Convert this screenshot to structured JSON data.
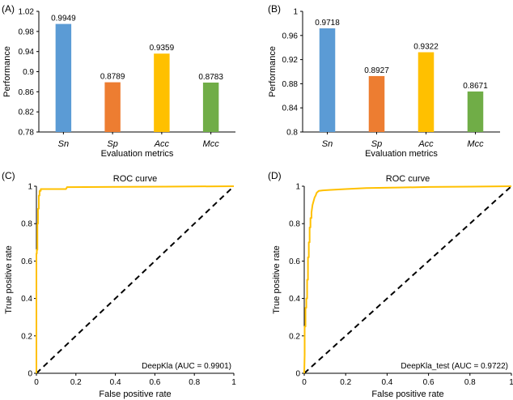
{
  "chart_data": [
    {
      "panel": "(A)",
      "type": "bar",
      "categories": [
        "Sn",
        "Sp",
        "Acc",
        "Mcc"
      ],
      "values": [
        0.9949,
        0.8789,
        0.9359,
        0.8783
      ],
      "value_labels": [
        "0.9949",
        "0.8789",
        "0.9359",
        "0.8783"
      ],
      "colors": [
        "#5b9bd5",
        "#ed7d31",
        "#ffc000",
        "#70ad47"
      ],
      "ylim": [
        0.78,
        1.02
      ],
      "yticks": [
        "0.78",
        "0.82",
        "0.86",
        "0.9",
        "0.94",
        "0.98",
        "1.02"
      ],
      "ylabel": "Performance",
      "xlabel": "Evaluation metrics"
    },
    {
      "panel": "(B)",
      "type": "bar",
      "categories": [
        "Sn",
        "Sp",
        "Acc",
        "Mcc"
      ],
      "values": [
        0.9718,
        0.8927,
        0.9322,
        0.8671
      ],
      "value_labels": [
        "0.9718",
        "0.8927",
        "0.9322",
        "0.8671"
      ],
      "colors": [
        "#5b9bd5",
        "#ed7d31",
        "#ffc000",
        "#70ad47"
      ],
      "ylim": [
        0.8,
        1.0
      ],
      "yticks": [
        "0.8",
        "0.84",
        "0.88",
        "0.92",
        "0.96",
        "1"
      ],
      "ylabel": "Performance",
      "xlabel": "Evaluation metrics"
    },
    {
      "panel": "(C)",
      "type": "line",
      "title": "ROC curve",
      "xlabel": "False positive rate",
      "ylabel": "True positive rate",
      "xlim": [
        0,
        1
      ],
      "ylim": [
        0,
        1
      ],
      "xticks": [
        "0",
        "0.2",
        "0.4",
        "0.6",
        "0.8",
        "1"
      ],
      "yticks": [
        "0",
        "0.2",
        "0.4",
        "0.6",
        "0.8",
        "1"
      ],
      "legend": "DeepKla (AUC = 0.9901)",
      "curve_color": "#ffc000",
      "x": [
        0,
        0,
        0.002,
        0.002,
        0.005,
        0.005,
        0.008,
        0.008,
        0.012,
        0.012,
        0.016,
        0.016,
        0.022,
        0.022,
        0.03,
        0.15,
        0.155,
        0.65,
        1.0
      ],
      "y": [
        0,
        0.64,
        0.64,
        0.66,
        0.66,
        0.8,
        0.8,
        0.88,
        0.88,
        0.95,
        0.95,
        0.975,
        0.975,
        0.985,
        0.985,
        0.985,
        0.995,
        0.998,
        1.0
      ]
    },
    {
      "panel": "(D)",
      "type": "line",
      "title": "ROC curve",
      "xlabel": "False positive rate",
      "ylabel": "True positive rate",
      "xlim": [
        0,
        1
      ],
      "ylim": [
        0,
        1
      ],
      "xticks": [
        "0",
        "0.2",
        "0.4",
        "0.6",
        "0.8",
        "1"
      ],
      "yticks": [
        "0",
        "0.2",
        "0.4",
        "0.6",
        "0.8",
        "1"
      ],
      "legend": "DeepKla_test (AUC = 0.9722)",
      "curve_color": "#ffc000",
      "x": [
        0,
        0.002,
        0.002,
        0.006,
        0.006,
        0.01,
        0.01,
        0.014,
        0.014,
        0.018,
        0.018,
        0.022,
        0.022,
        0.026,
        0.026,
        0.03,
        0.03,
        0.035,
        0.035,
        0.04,
        0.045,
        0.05,
        0.055,
        0.06,
        0.07,
        0.09,
        0.12,
        0.2,
        0.3,
        0.45,
        0.6,
        0.8,
        1.0
      ],
      "y": [
        0,
        0.1,
        0.25,
        0.25,
        0.35,
        0.35,
        0.4,
        0.4,
        0.5,
        0.5,
        0.62,
        0.62,
        0.7,
        0.7,
        0.78,
        0.78,
        0.83,
        0.83,
        0.86,
        0.9,
        0.92,
        0.94,
        0.95,
        0.965,
        0.975,
        0.978,
        0.98,
        0.985,
        0.99,
        0.993,
        0.996,
        0.998,
        1.0
      ]
    }
  ]
}
